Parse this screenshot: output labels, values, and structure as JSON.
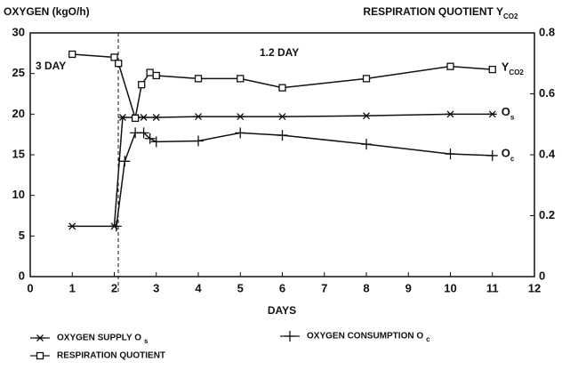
{
  "chart_data": {
    "type": "line",
    "y_label": "OXYGEN (kgO/h)",
    "y2_label": "RESPIRATION QUOTIENT Y",
    "y2_label_sub": "CO2",
    "x_label": "DAYS",
    "annotations": [
      "3 DAY",
      "1.2 DAY"
    ],
    "xlim": [
      0,
      12
    ],
    "xticks": [
      0,
      1,
      2,
      3,
      4,
      5,
      6,
      7,
      8,
      9,
      10,
      11,
      12
    ],
    "ylim": [
      0,
      30
    ],
    "yticks": [
      0,
      5,
      10,
      15,
      20,
      25,
      30
    ],
    "y2lim": [
      0,
      0.8
    ],
    "y2ticks": [
      0,
      0.2,
      0.4,
      0.6,
      0.8
    ],
    "series": [
      {
        "name": "OXYGEN SUPPLY O",
        "name_sub": "s",
        "label": "O",
        "label_sub": "s",
        "color": "#111",
        "marker": "asterisk",
        "x": [
          1,
          2,
          2.2,
          2.5,
          2.7,
          3,
          4,
          5,
          6,
          8,
          10,
          11
        ],
        "values": [
          6.2,
          6.2,
          19.6,
          19.6,
          19.6,
          19.6,
          19.7,
          19.7,
          19.7,
          19.8,
          20.0,
          20.0
        ]
      },
      {
        "name": "OXYGEN CONSUMPTION O",
        "name_sub": "c",
        "label": "O",
        "label_sub": "c",
        "color": "#111",
        "marker": "plus",
        "x": [
          2.05,
          2.25,
          2.5,
          2.7,
          2.85,
          3,
          4,
          5,
          6,
          8,
          10,
          11
        ],
        "values": [
          6.2,
          14.2,
          17.7,
          17.7,
          17.0,
          16.6,
          16.7,
          17.7,
          17.4,
          16.3,
          15.1,
          14.9
        ]
      },
      {
        "name": "RESPIRATION QUOTIENT",
        "label": "Y",
        "label_sub": "CO2",
        "color": "#111",
        "marker": "square",
        "axis": "y2",
        "x": [
          1,
          2,
          2.1,
          2.5,
          2.65,
          2.85,
          3,
          4,
          5,
          6,
          8,
          10,
          11
        ],
        "values": [
          0.73,
          0.72,
          0.7,
          0.52,
          0.63,
          0.67,
          0.66,
          0.65,
          0.65,
          0.62,
          0.65,
          0.69,
          0.68
        ]
      }
    ]
  }
}
